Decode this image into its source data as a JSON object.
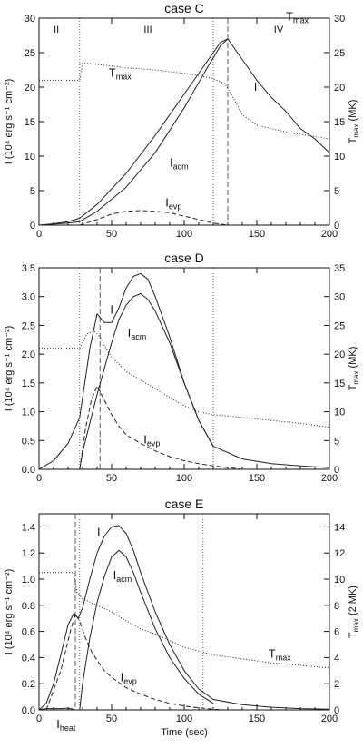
{
  "colors": {
    "axis": "#111111",
    "curve": "#222222",
    "guide": "#333333"
  },
  "chart_data": [
    {
      "type": "line",
      "title": "case C",
      "xlabel": "",
      "ylabel": "I (10⁴ erg s⁻¹ cm⁻²)",
      "ylabel_right": "T_max (MK)",
      "xlim": [
        0,
        200
      ],
      "ylim": [
        0,
        30
      ],
      "ylim_right": [
        0,
        30
      ],
      "xticks": [
        0,
        50,
        100,
        150,
        200
      ],
      "yticks": [
        0,
        5,
        10,
        15,
        20,
        25,
        30
      ],
      "yticks_right": [
        0,
        5,
        10,
        15,
        20,
        25,
        30
      ],
      "phase_lines": [
        28,
        120
      ],
      "peak_line": 130,
      "phase_labels": [
        {
          "text": "II",
          "x": 12
        },
        {
          "text": "III",
          "x": 75
        },
        {
          "text": "IV",
          "x": 165
        }
      ],
      "series": [
        {
          "name": "I",
          "style": "solid",
          "x": [
            0,
            10,
            20,
            28,
            40,
            60,
            80,
            100,
            115,
            125,
            130,
            140,
            150,
            160,
            170,
            180,
            190,
            200
          ],
          "values": [
            0,
            0.2,
            0.5,
            1,
            3,
            7.5,
            13,
            19,
            23.5,
            26.5,
            27,
            24,
            21,
            18.5,
            16.5,
            14,
            12.5,
            10.5
          ]
        },
        {
          "name": "I_acm",
          "style": "solid",
          "x": [
            0,
            20,
            28,
            40,
            60,
            80,
            100,
            115,
            125,
            130
          ],
          "values": [
            0,
            0.3,
            0.5,
            2,
            5.5,
            10.5,
            17,
            22.5,
            26,
            27
          ]
        },
        {
          "name": "I_evp",
          "style": "dashed",
          "x": [
            28,
            40,
            50,
            60,
            70,
            80,
            90,
            100,
            110,
            120,
            130
          ],
          "values": [
            0,
            0.8,
            1.6,
            2,
            2.1,
            2,
            1.8,
            1.3,
            0.8,
            0.3,
            0
          ]
        },
        {
          "name": "T_max",
          "style": "dotted",
          "axis": "right",
          "x": [
            0,
            20,
            28,
            30,
            40,
            60,
            80,
            100,
            110,
            120,
            128,
            135,
            140,
            150,
            170,
            200
          ],
          "values": [
            21,
            21,
            21,
            23.5,
            23.3,
            22.8,
            22.5,
            22,
            21.7,
            21.2,
            20.5,
            18,
            16,
            14.5,
            13.5,
            12.5
          ]
        }
      ],
      "annotations": [
        {
          "text": "T",
          "sub": "max",
          "x": 48,
          "y": 21.5
        },
        {
          "text": "I",
          "sub": "",
          "x": 148,
          "y": 19.5
        },
        {
          "text": "I",
          "sub": "acm",
          "x": 90,
          "y": 8.5
        },
        {
          "text": "I",
          "sub": "evp",
          "x": 87,
          "y": 2.7
        }
      ]
    },
    {
      "type": "line",
      "title": "case D",
      "xlabel": "",
      "ylabel": "I (10⁴ erg s⁻¹ cm⁻²)",
      "ylabel_right": "T_max (MK)",
      "xlim": [
        0,
        200
      ],
      "ylim": [
        0,
        3.5
      ],
      "ylim_right": [
        0,
        35
      ],
      "xticks": [
        0,
        50,
        100,
        150,
        200
      ],
      "yticks": [
        0.0,
        0.5,
        1.0,
        1.5,
        2.0,
        2.5,
        3.0,
        3.5
      ],
      "yticks_right": [
        0,
        5,
        10,
        15,
        20,
        25,
        30,
        35
      ],
      "phase_lines": [
        28,
        120
      ],
      "peak_line": 42,
      "phase_labels": [],
      "series": [
        {
          "name": "I",
          "style": "solid",
          "x": [
            0,
            10,
            20,
            28,
            35,
            40,
            45,
            50,
            55,
            60,
            65,
            70,
            75,
            80,
            90,
            100,
            110,
            120,
            140,
            160,
            180,
            200
          ],
          "values": [
            0,
            0.15,
            0.45,
            0.9,
            2.1,
            2.7,
            2.55,
            2.55,
            2.8,
            3.15,
            3.35,
            3.4,
            3.3,
            3.0,
            2.3,
            1.5,
            0.85,
            0.4,
            0.18,
            0.1,
            0.06,
            0.03
          ]
        },
        {
          "name": "I_acm",
          "style": "solid",
          "x": [
            28,
            30,
            35,
            40,
            45,
            50,
            55,
            60,
            65,
            70,
            75,
            80,
            90,
            100,
            110,
            120
          ],
          "values": [
            0,
            0.3,
            0.8,
            1.3,
            1.75,
            2.2,
            2.6,
            2.85,
            3.0,
            3.05,
            2.95,
            2.75,
            2.2,
            1.5,
            0.85,
            0.4
          ]
        },
        {
          "name": "I_evp",
          "style": "dashed",
          "x": [
            28,
            32,
            36,
            40,
            45,
            50,
            55,
            60,
            70,
            80,
            90,
            100,
            110,
            120,
            140
          ],
          "values": [
            0,
            0.7,
            1.2,
            1.45,
            1.2,
            0.95,
            0.75,
            0.6,
            0.45,
            0.32,
            0.22,
            0.15,
            0.1,
            0.06,
            0
          ]
        },
        {
          "name": "T_max",
          "style": "dotted",
          "axis": "right",
          "x": [
            0,
            20,
            28,
            33,
            38,
            42,
            46,
            50,
            60,
            70,
            80,
            90,
            100,
            110,
            120,
            140,
            160,
            180,
            200
          ],
          "values": [
            21,
            21,
            21,
            23.5,
            24,
            23,
            21,
            19.5,
            17,
            15.5,
            14,
            12.5,
            11,
            10,
            9.5,
            9,
            8.5,
            8,
            7.3
          ]
        }
      ],
      "annotations": [
        {
          "text": "I",
          "sub": "",
          "x": 49,
          "y": 2.7
        },
        {
          "text": "I",
          "sub": "acm",
          "x": 61,
          "y": 2.3
        },
        {
          "text": "I",
          "sub": "evp",
          "x": 72,
          "y": 0.45
        },
        {
          "text": "T",
          "sub": "max",
          "x": 170,
          "y": 7.8
        }
      ]
    },
    {
      "type": "line",
      "title": "case E",
      "xlabel": "Time (sec)",
      "ylabel": "I (10⁴ erg s⁻¹ cm⁻²)",
      "ylabel_right": "T_max (2 MK)",
      "xlim": [
        0,
        200
      ],
      "ylim": [
        0,
        1.5
      ],
      "ylim_right": [
        0,
        15
      ],
      "xticks": [
        0,
        50,
        100,
        150,
        200
      ],
      "yticks": [
        0.0,
        0.2,
        0.4,
        0.6,
        0.8,
        1.0,
        1.2,
        1.4
      ],
      "yticks_right": [
        0,
        2,
        4,
        6,
        8,
        10,
        12,
        14
      ],
      "phase_lines": [
        28,
        113
      ],
      "peak_line": 25,
      "phase_labels": [],
      "series": [
        {
          "name": "I",
          "style": "solid",
          "x": [
            0,
            5,
            10,
            15,
            20,
            24,
            27,
            30,
            35,
            40,
            45,
            50,
            55,
            60,
            65,
            70,
            80,
            90,
            100,
            110,
            120,
            140,
            160,
            180,
            200
          ],
          "values": [
            0,
            0.05,
            0.2,
            0.42,
            0.65,
            0.74,
            0.7,
            0.78,
            1.0,
            1.2,
            1.33,
            1.4,
            1.41,
            1.35,
            1.22,
            1.05,
            0.75,
            0.5,
            0.3,
            0.16,
            0.08,
            0.04,
            0.02,
            0.01,
            0.005
          ]
        },
        {
          "name": "I_acm",
          "style": "solid",
          "x": [
            28,
            30,
            35,
            40,
            45,
            50,
            55,
            60,
            65,
            70,
            80,
            90,
            100,
            110,
            120
          ],
          "values": [
            0,
            0.2,
            0.55,
            0.82,
            1.02,
            1.17,
            1.22,
            1.17,
            1.05,
            0.9,
            0.62,
            0.4,
            0.24,
            0.12,
            0.05
          ]
        },
        {
          "name": "I_evp",
          "style": "dashed",
          "x": [
            5,
            15,
            22,
            25,
            28,
            32,
            36,
            40,
            45,
            50,
            55,
            60,
            70,
            80,
            90,
            100,
            110,
            120,
            130
          ],
          "values": [
            0,
            0.3,
            0.62,
            0.73,
            0.68,
            0.55,
            0.45,
            0.38,
            0.3,
            0.25,
            0.21,
            0.17,
            0.12,
            0.08,
            0.05,
            0.03,
            0.015,
            0.005,
            0
          ]
        },
        {
          "name": "I_heat",
          "style": "solid",
          "x": [
            0,
            2,
            5,
            10,
            15,
            18,
            20,
            22,
            25
          ],
          "values": [
            0,
            0.005,
            0.01,
            0.01,
            0.01,
            0.012,
            0.012,
            0.01,
            0
          ]
        },
        {
          "name": "T_max",
          "style": "dotted",
          "axis": "right",
          "x": [
            0,
            20,
            24,
            26,
            30,
            40,
            50,
            60,
            70,
            80,
            90,
            100,
            110,
            120,
            140,
            160,
            180,
            200
          ],
          "values": [
            10.5,
            10.5,
            10.5,
            9,
            8.5,
            8,
            7.5,
            6.8,
            6.2,
            5.8,
            5.3,
            4.8,
            4.5,
            4.2,
            3.9,
            3.6,
            3.4,
            3.2
          ]
        }
      ],
      "annotations": [
        {
          "text": "I",
          "sub": "",
          "x": 40,
          "y": 1.33
        },
        {
          "text": "I",
          "sub": "acm",
          "x": 51,
          "y": 1.0
        },
        {
          "text": "I",
          "sub": "evp",
          "x": 56,
          "y": 0.22
        },
        {
          "text": "T",
          "sub": "max",
          "x": 158,
          "y": 0.4
        },
        {
          "text": "I",
          "sub": "heat",
          "x": 12,
          "y": -0.14
        }
      ]
    }
  ]
}
